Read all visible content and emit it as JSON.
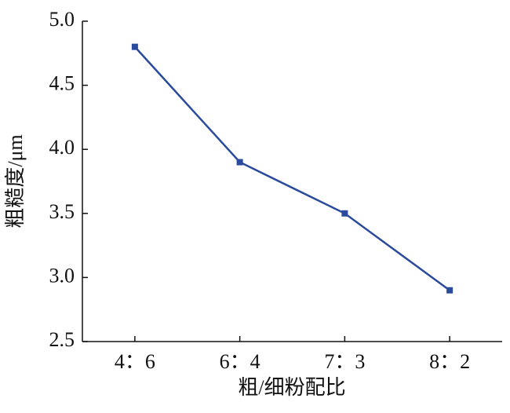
{
  "chart_data": {
    "type": "line",
    "x_label": "粗/细粉配比",
    "y_label": "粗糙度/μm",
    "categories": [
      "4：6",
      "6：4",
      "7：3",
      "8：2"
    ],
    "series": [
      {
        "color": "#2a4a9c",
        "values": [
          4.8,
          3.9,
          3.5,
          2.9
        ]
      }
    ],
    "ylim": [
      2.5,
      5.0
    ],
    "yticks": [
      {
        "value": 2.5,
        "label": "2.5"
      },
      {
        "value": 3.0,
        "label": "3.0"
      },
      {
        "value": 3.5,
        "label": "3.5"
      },
      {
        "value": 4.0,
        "label": "4.0"
      },
      {
        "value": 4.5,
        "label": "4.5"
      },
      {
        "value": 5.0,
        "label": "5.0"
      }
    ],
    "grid": false
  }
}
